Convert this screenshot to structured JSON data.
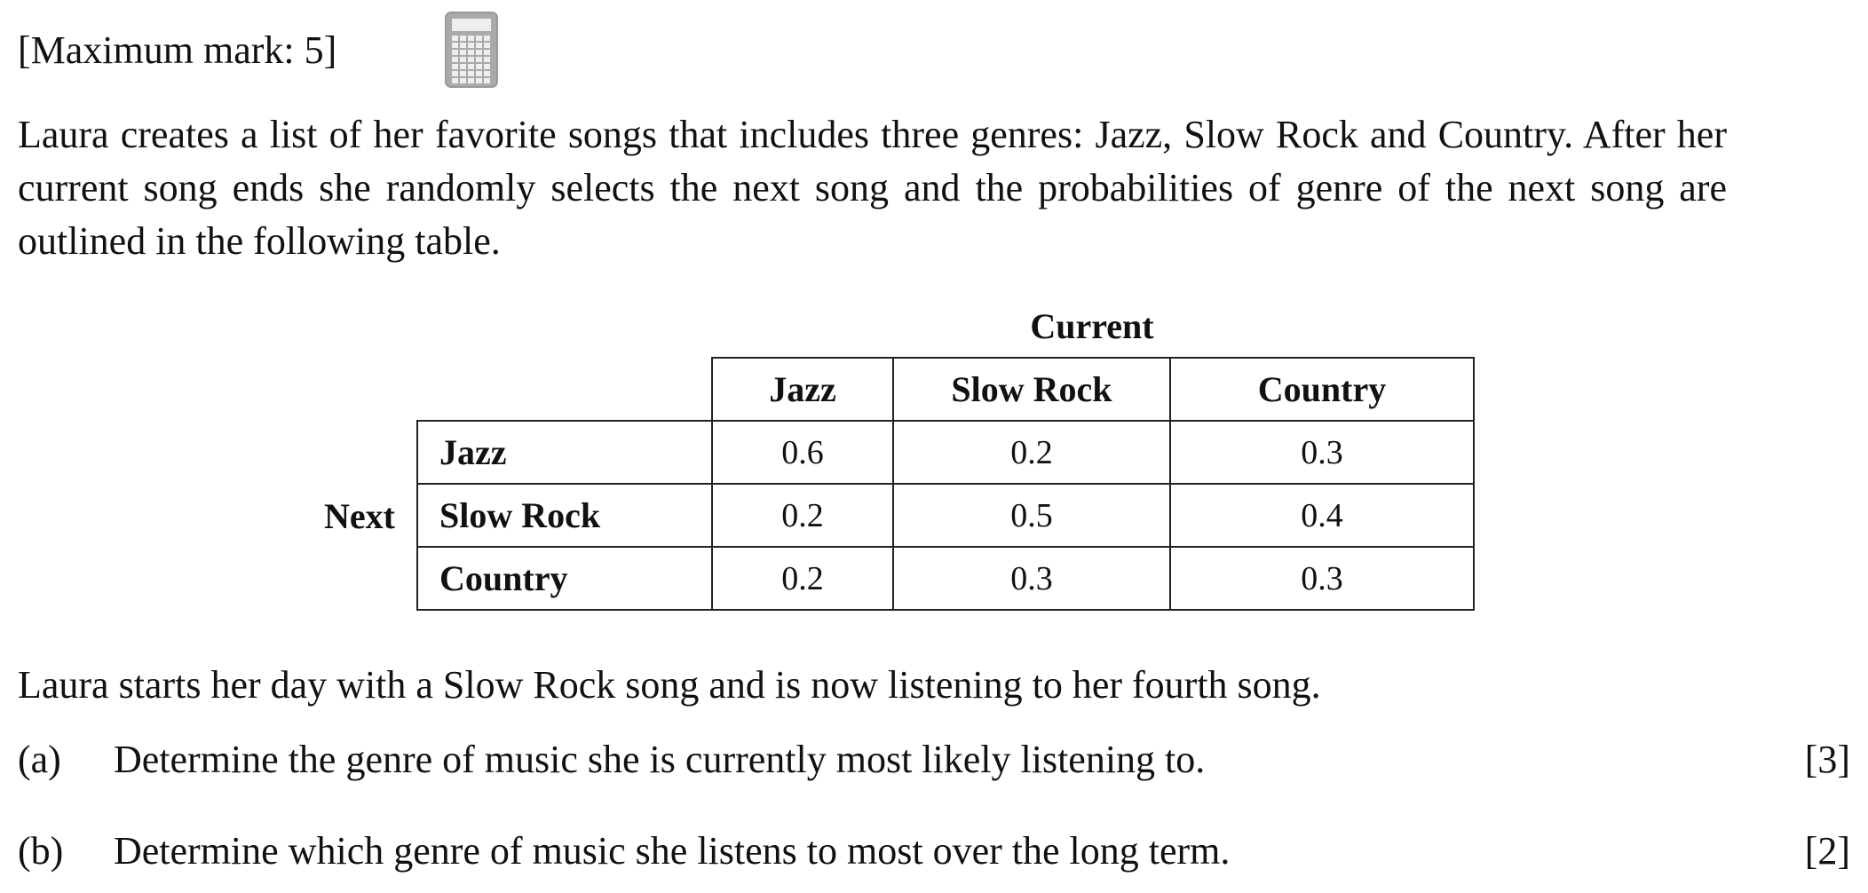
{
  "header": {
    "max_mark": "[Maximum mark: 5]"
  },
  "intro": "Laura creates a list of her favorite songs that includes three genres: Jazz, Slow Rock and Country. After her current song ends she randomly selects the next song and the probabilities of genre of the next song are outlined in the following table.",
  "table": {
    "column_heading": "Current",
    "row_heading": "Next",
    "columns": [
      "Jazz",
      "Slow Rock",
      "Country"
    ],
    "rows": [
      {
        "label": "Jazz",
        "cells": [
          0.6,
          0.2,
          0.3
        ]
      },
      {
        "label": "Slow Rock",
        "cells": [
          0.2,
          0.5,
          0.4
        ]
      },
      {
        "label": "Country",
        "cells": [
          0.2,
          0.3,
          0.3
        ]
      }
    ]
  },
  "statement": "Laura starts her day with a Slow Rock song and is now listening to her fourth song.",
  "parts": [
    {
      "label": "(a)",
      "text": "Determine the genre of music she is currently most likely listening to.",
      "marks": "[3]"
    },
    {
      "label": "(b)",
      "text": "Determine which genre of music she listens to most over the long term.",
      "marks": "[2]"
    }
  ]
}
